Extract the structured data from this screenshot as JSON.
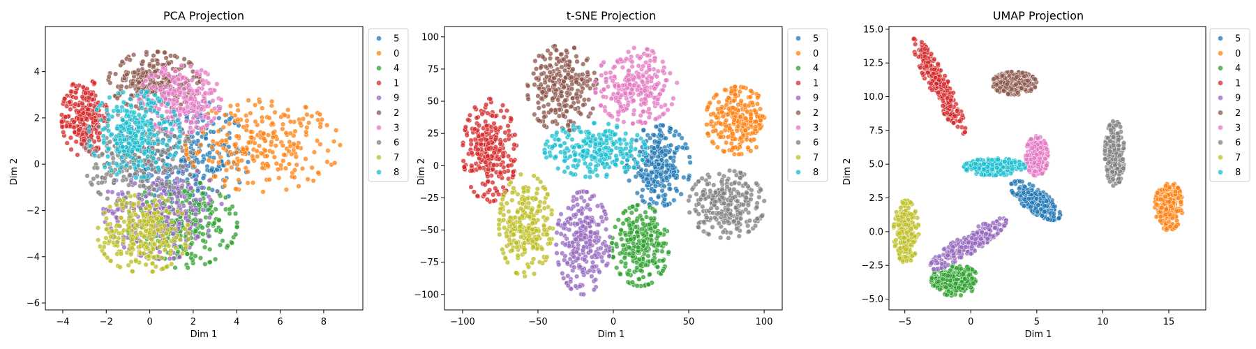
{
  "palette": {
    "0": "#ff7f0e",
    "1": "#d62728",
    "2": "#8c564b",
    "3": "#e377c2",
    "4": "#2ca02c",
    "5": "#1f77b4",
    "6": "#7f7f7f",
    "7": "#bcbd22",
    "8": "#17becf",
    "9": "#9467bd"
  },
  "chart_data": [
    {
      "type": "scatter",
      "title": "PCA Projection",
      "xlabel": "Dim 1",
      "ylabel": "Dim 2",
      "xlim": [
        -4.8,
        9.8
      ],
      "ylim": [
        -6.3,
        5.95
      ],
      "xticks": [
        -4,
        -2,
        0,
        2,
        4,
        6,
        8
      ],
      "xtick_labels": [
        "−4",
        "−2",
        "0",
        "2",
        "4",
        "6",
        "8"
      ],
      "yticks": [
        -6,
        -4,
        -2,
        0,
        2,
        4
      ],
      "ytick_labels": [
        "−6",
        "−4",
        "−2",
        "0",
        "2",
        "4"
      ],
      "grid": false,
      "legend": {
        "location": "outside-right-top",
        "entries": [
          "5",
          "0",
          "4",
          "1",
          "9",
          "2",
          "3",
          "6",
          "7",
          "8"
        ]
      },
      "series": [
        {
          "name": "5",
          "cluster": {
            "cx": 1.8,
            "cy": 0.3,
            "rx": 2.6,
            "ry": 2.4
          }
        },
        {
          "name": "0",
          "cluster": {
            "cx": 5.2,
            "cy": 0.8,
            "rx": 3.4,
            "ry": 1.9
          }
        },
        {
          "name": "4",
          "cluster": {
            "cx": 1.5,
            "cy": -2.6,
            "rx": 2.4,
            "ry": 1.8
          }
        },
        {
          "name": "1",
          "cluster": {
            "cx": -3.0,
            "cy": 2.0,
            "rx": 1.0,
            "ry": 1.6
          }
        },
        {
          "name": "9",
          "cluster": {
            "cx": 0.6,
            "cy": -2.0,
            "rx": 2.6,
            "ry": 2.0
          }
        },
        {
          "name": "2",
          "cluster": {
            "cx": 0.2,
            "cy": 3.6,
            "rx": 2.0,
            "ry": 1.2
          }
        },
        {
          "name": "3",
          "cluster": {
            "cx": 1.4,
            "cy": 2.8,
            "rx": 1.8,
            "ry": 1.4
          }
        },
        {
          "name": "6",
          "cluster": {
            "cx": -0.5,
            "cy": 0.2,
            "rx": 2.4,
            "ry": 2.0
          }
        },
        {
          "name": "7",
          "cluster": {
            "cx": -0.3,
            "cy": -3.0,
            "rx": 2.0,
            "ry": 1.6
          }
        },
        {
          "name": "8",
          "cluster": {
            "cx": -0.7,
            "cy": 1.3,
            "rx": 2.0,
            "ry": 1.8
          }
        }
      ]
    },
    {
      "type": "scatter",
      "title": "t-SNE Projection",
      "xlabel": "Dim 1",
      "ylabel": "Dim 2",
      "xlim": [
        -112,
        112
      ],
      "ylim": [
        -112,
        108
      ],
      "xticks": [
        -100,
        -50,
        0,
        50,
        100
      ],
      "xtick_labels": [
        "−100",
        "−50",
        "0",
        "50",
        "100"
      ],
      "yticks": [
        -100,
        -75,
        -50,
        -25,
        0,
        25,
        50,
        75,
        100
      ],
      "ytick_labels": [
        "−100",
        "−75",
        "−50",
        "−25",
        "0",
        "25",
        "50",
        "75",
        "100"
      ],
      "grid": false,
      "legend": {
        "location": "outside-right-top",
        "entries": [
          "5",
          "0",
          "4",
          "1",
          "9",
          "2",
          "3",
          "6",
          "7",
          "8"
        ]
      },
      "series": [
        {
          "name": "5",
          "cluster": {
            "cx": 30,
            "cy": 0,
            "rx": 20,
            "ry": 30
          }
        },
        {
          "name": "0",
          "cluster": {
            "cx": 82,
            "cy": 35,
            "rx": 20,
            "ry": 25
          }
        },
        {
          "name": "4",
          "cluster": {
            "cx": 18,
            "cy": -62,
            "rx": 18,
            "ry": 30
          }
        },
        {
          "name": "1",
          "cluster": {
            "cx": -82,
            "cy": 12,
            "rx": 17,
            "ry": 38
          }
        },
        {
          "name": "9",
          "cluster": {
            "cx": -20,
            "cy": -60,
            "rx": 17,
            "ry": 38
          }
        },
        {
          "name": "2",
          "cluster": {
            "cx": -34,
            "cy": 60,
            "rx": 22,
            "ry": 32
          }
        },
        {
          "name": "3",
          "cluster": {
            "cx": 15,
            "cy": 62,
            "rx": 26,
            "ry": 28
          }
        },
        {
          "name": "6",
          "cluster": {
            "cx": 75,
            "cy": -30,
            "rx": 24,
            "ry": 25
          }
        },
        {
          "name": "7",
          "cluster": {
            "cx": -58,
            "cy": -46,
            "rx": 17,
            "ry": 38
          }
        },
        {
          "name": "8",
          "cluster": {
            "cx": -12,
            "cy": 12,
            "rx": 32,
            "ry": 20
          }
        }
      ]
    },
    {
      "type": "scatter",
      "title": "UMAP Projection",
      "xlabel": "Dim 1",
      "ylabel": "Dim 2",
      "xlim": [
        -6.2,
        17.8
      ],
      "ylim": [
        -5.8,
        15.2
      ],
      "xticks": [
        -5,
        0,
        5,
        10,
        15
      ],
      "xtick_labels": [
        "−5",
        "0",
        "5",
        "10",
        "15"
      ],
      "yticks": [
        -5.0,
        -2.5,
        0.0,
        2.5,
        5.0,
        7.5,
        10.0,
        12.5,
        15.0
      ],
      "ytick_labels": [
        "−5.0",
        "−2.5",
        "0.0",
        "2.5",
        "5.0",
        "7.5",
        "10.0",
        "12.5",
        "15.0"
      ],
      "grid": false,
      "legend": {
        "location": "outside-right-top",
        "entries": [
          "5",
          "0",
          "4",
          "1",
          "9",
          "2",
          "3",
          "6",
          "7",
          "8"
        ]
      },
      "series": [
        {
          "name": "5",
          "cluster": {
            "cx": 4.9,
            "cy": 2.3,
            "rx": 2.1,
            "ry": 0.8,
            "angle": -35
          }
        },
        {
          "name": "0",
          "cluster": {
            "cx": 15.0,
            "cy": 1.9,
            "rx": 1.0,
            "ry": 1.7
          }
        },
        {
          "name": "4",
          "cluster": {
            "cx": -1.2,
            "cy": -3.6,
            "rx": 1.7,
            "ry": 1.1
          }
        },
        {
          "name": "1",
          "cluster": {
            "cx": -2.4,
            "cy": 10.8,
            "rx": 3.8,
            "ry": 0.7,
            "angle": -62
          }
        },
        {
          "name": "9",
          "cluster": {
            "cx": -0.2,
            "cy": -0.9,
            "rx": 3.2,
            "ry": 0.7,
            "angle": 32
          }
        },
        {
          "name": "2",
          "cluster": {
            "cx": 3.3,
            "cy": 11.0,
            "rx": 1.6,
            "ry": 0.8
          }
        },
        {
          "name": "3",
          "cluster": {
            "cx": 5.0,
            "cy": 5.6,
            "rx": 0.8,
            "ry": 1.4
          }
        },
        {
          "name": "6",
          "cluster": {
            "cx": 10.9,
            "cy": 5.8,
            "rx": 0.7,
            "ry": 2.3
          }
        },
        {
          "name": "7",
          "cluster": {
            "cx": -4.9,
            "cy": 0.0,
            "rx": 0.9,
            "ry": 2.2
          }
        },
        {
          "name": "8",
          "cluster": {
            "cx": 1.8,
            "cy": 4.8,
            "rx": 2.2,
            "ry": 0.6
          }
        }
      ]
    }
  ]
}
